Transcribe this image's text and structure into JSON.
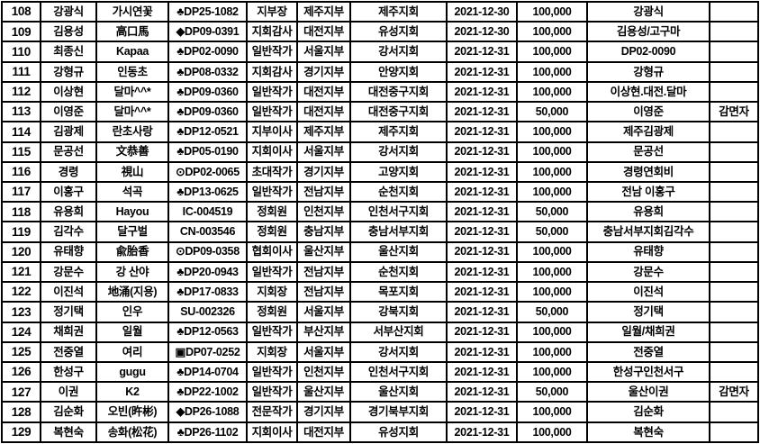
{
  "table": {
    "rows": [
      {
        "no": "108",
        "name": "강광식",
        "nick": "가시연꽃",
        "code": "♣DP25-1082",
        "position": "지부장",
        "branch": "제주지부",
        "chapter": "제주지회",
        "date": "2021-12-30",
        "amount": "100,000",
        "depositor": "강광식",
        "note": ""
      },
      {
        "no": "109",
        "name": "김용성",
        "nick": "高口馬",
        "code": "◆DP09-0391",
        "position": "지회감사",
        "branch": "대전지부",
        "chapter": "유성지회",
        "date": "2021-12-30",
        "amount": "100,000",
        "depositor": "김용성/고구마",
        "note": ""
      },
      {
        "no": "110",
        "name": "최종신",
        "nick": "Kapaa",
        "code": "♣DP02-0090",
        "position": "일반작가",
        "branch": "서울지부",
        "chapter": "강서지회",
        "date": "2021-12-31",
        "amount": "100,000",
        "depositor": "DP02-0090",
        "note": ""
      },
      {
        "no": "111",
        "name": "강형규",
        "nick": "인동초",
        "code": "♣DP08-0332",
        "position": "지회감사",
        "branch": "경기지부",
        "chapter": "안양지회",
        "date": "2021-12-31",
        "amount": "100,000",
        "depositor": "강형규",
        "note": ""
      },
      {
        "no": "112",
        "name": "이상현",
        "nick": "달마^^*",
        "code": "♣DP09-0360",
        "position": "일반작가",
        "branch": "대전지부",
        "chapter": "대전중구지회",
        "date": "2021-12-31",
        "amount": "100,000",
        "depositor": "이상현.대전.달마",
        "note": ""
      },
      {
        "no": "113",
        "name": "이영준",
        "nick": "달마^^*",
        "code": "♣DP09-0360",
        "position": "일반작가",
        "branch": "대전지부",
        "chapter": "대전중구지회",
        "date": "2021-12-31",
        "amount": "50,000",
        "depositor": "이영준",
        "note": "감면자"
      },
      {
        "no": "114",
        "name": "김광제",
        "nick": "란초사랑",
        "code": "♣DP12-0521",
        "position": "지부이사",
        "branch": "제주지부",
        "chapter": "제주지회",
        "date": "2021-12-31",
        "amount": "100,000",
        "depositor": "제주김광제",
        "note": ""
      },
      {
        "no": "115",
        "name": "문공선",
        "nick": "文恭善",
        "code": "♣DP05-0190",
        "position": "지회이사",
        "branch": "서울지부",
        "chapter": "강서지회",
        "date": "2021-12-31",
        "amount": "100,000",
        "depositor": "문공선",
        "note": ""
      },
      {
        "no": "116",
        "name": "경령",
        "nick": "視山",
        "code": "⊙DP02-0065",
        "position": "초대작가",
        "branch": "경기지부",
        "chapter": "고양지회",
        "date": "2021-12-31",
        "amount": "100,000",
        "depositor": "경령연회비",
        "note": ""
      },
      {
        "no": "117",
        "name": "이홍구",
        "nick": "석곡",
        "code": "♣DP13-0625",
        "position": "일반작가",
        "branch": "전남지부",
        "chapter": "순천지회",
        "date": "2021-12-31",
        "amount": "100,000",
        "depositor": "전남 이홍구",
        "note": ""
      },
      {
        "no": "118",
        "name": "유용희",
        "nick": "Hayou",
        "code": "IC-004519",
        "position": "정회원",
        "branch": "인천지부",
        "chapter": "인천서구지회",
        "date": "2021-12-31",
        "amount": "50,000",
        "depositor": "유용희",
        "note": ""
      },
      {
        "no": "119",
        "name": "김각수",
        "nick": "달구벌",
        "code": "CN-003546",
        "position": "정회원",
        "branch": "충남지부",
        "chapter": "충남서부지회",
        "date": "2021-12-31",
        "amount": "50,000",
        "depositor": "충남서부지회김각수",
        "note": ""
      },
      {
        "no": "120",
        "name": "유태향",
        "nick": "兪胎香",
        "code": "⊙DP09-0358",
        "position": "협회이사",
        "branch": "울산지부",
        "chapter": "울산지회",
        "date": "2021-12-31",
        "amount": "100,000",
        "depositor": "유태향",
        "note": ""
      },
      {
        "no": "121",
        "name": "강문수",
        "nick": "강 산야",
        "code": "♣DP20-0943",
        "position": "일반작가",
        "branch": "전남지부",
        "chapter": "순천지회",
        "date": "2021-12-31",
        "amount": "100,000",
        "depositor": "강문수",
        "note": ""
      },
      {
        "no": "122",
        "name": "이진석",
        "nick": "地涌(지용)",
        "code": "♣DP17-0833",
        "position": "지회장",
        "branch": "전남지부",
        "chapter": "목포지회",
        "date": "2021-12-31",
        "amount": "100,000",
        "depositor": "이진석",
        "note": ""
      },
      {
        "no": "123",
        "name": "정기택",
        "nick": "인우",
        "code": "SU-002326",
        "position": "정회원",
        "branch": "서울지부",
        "chapter": "강북지회",
        "date": "2021-12-31",
        "amount": "50,000",
        "depositor": "정기택",
        "note": ""
      },
      {
        "no": "124",
        "name": "채희권",
        "nick": "일월",
        "code": "♣DP12-0563",
        "position": "일반작가",
        "branch": "부산지부",
        "chapter": "서부산지회",
        "date": "2021-12-31",
        "amount": "100,000",
        "depositor": "일월/채희권",
        "note": ""
      },
      {
        "no": "125",
        "name": "전중열",
        "nick": "여리",
        "code": "▣DP07-0252",
        "position": "지회장",
        "branch": "서울지부",
        "chapter": "강서지회",
        "date": "2021-12-31",
        "amount": "100,000",
        "depositor": "전중열",
        "note": ""
      },
      {
        "no": "126",
        "name": "한성구",
        "nick": "gugu",
        "code": "♣DP14-0704",
        "position": "일반작가",
        "branch": "인천지부",
        "chapter": "인천서구지회",
        "date": "2021-12-31",
        "amount": "100,000",
        "depositor": "한성구인천서구",
        "note": ""
      },
      {
        "no": "127",
        "name": "이권",
        "nick": "K2",
        "code": "♣DP22-1002",
        "position": "일반작가",
        "branch": "울산지부",
        "chapter": "울산지회",
        "date": "2021-12-31",
        "amount": "50,000",
        "depositor": "울산이권",
        "note": "감면자"
      },
      {
        "no": "128",
        "name": "김순화",
        "nick": "오빈(旿彬)",
        "code": "◆DP26-1088",
        "position": "전문작가",
        "branch": "경기지부",
        "chapter": "경기북부지회",
        "date": "2021-12-31",
        "amount": "100,000",
        "depositor": "김순화",
        "note": ""
      },
      {
        "no": "129",
        "name": "복현숙",
        "nick": "송화(松花)",
        "code": "♣DP26-1102",
        "position": "지회이사",
        "branch": "대전지부",
        "chapter": "유성지회",
        "date": "2021-12-31",
        "amount": "100,000",
        "depositor": "복현숙",
        "note": ""
      }
    ]
  }
}
